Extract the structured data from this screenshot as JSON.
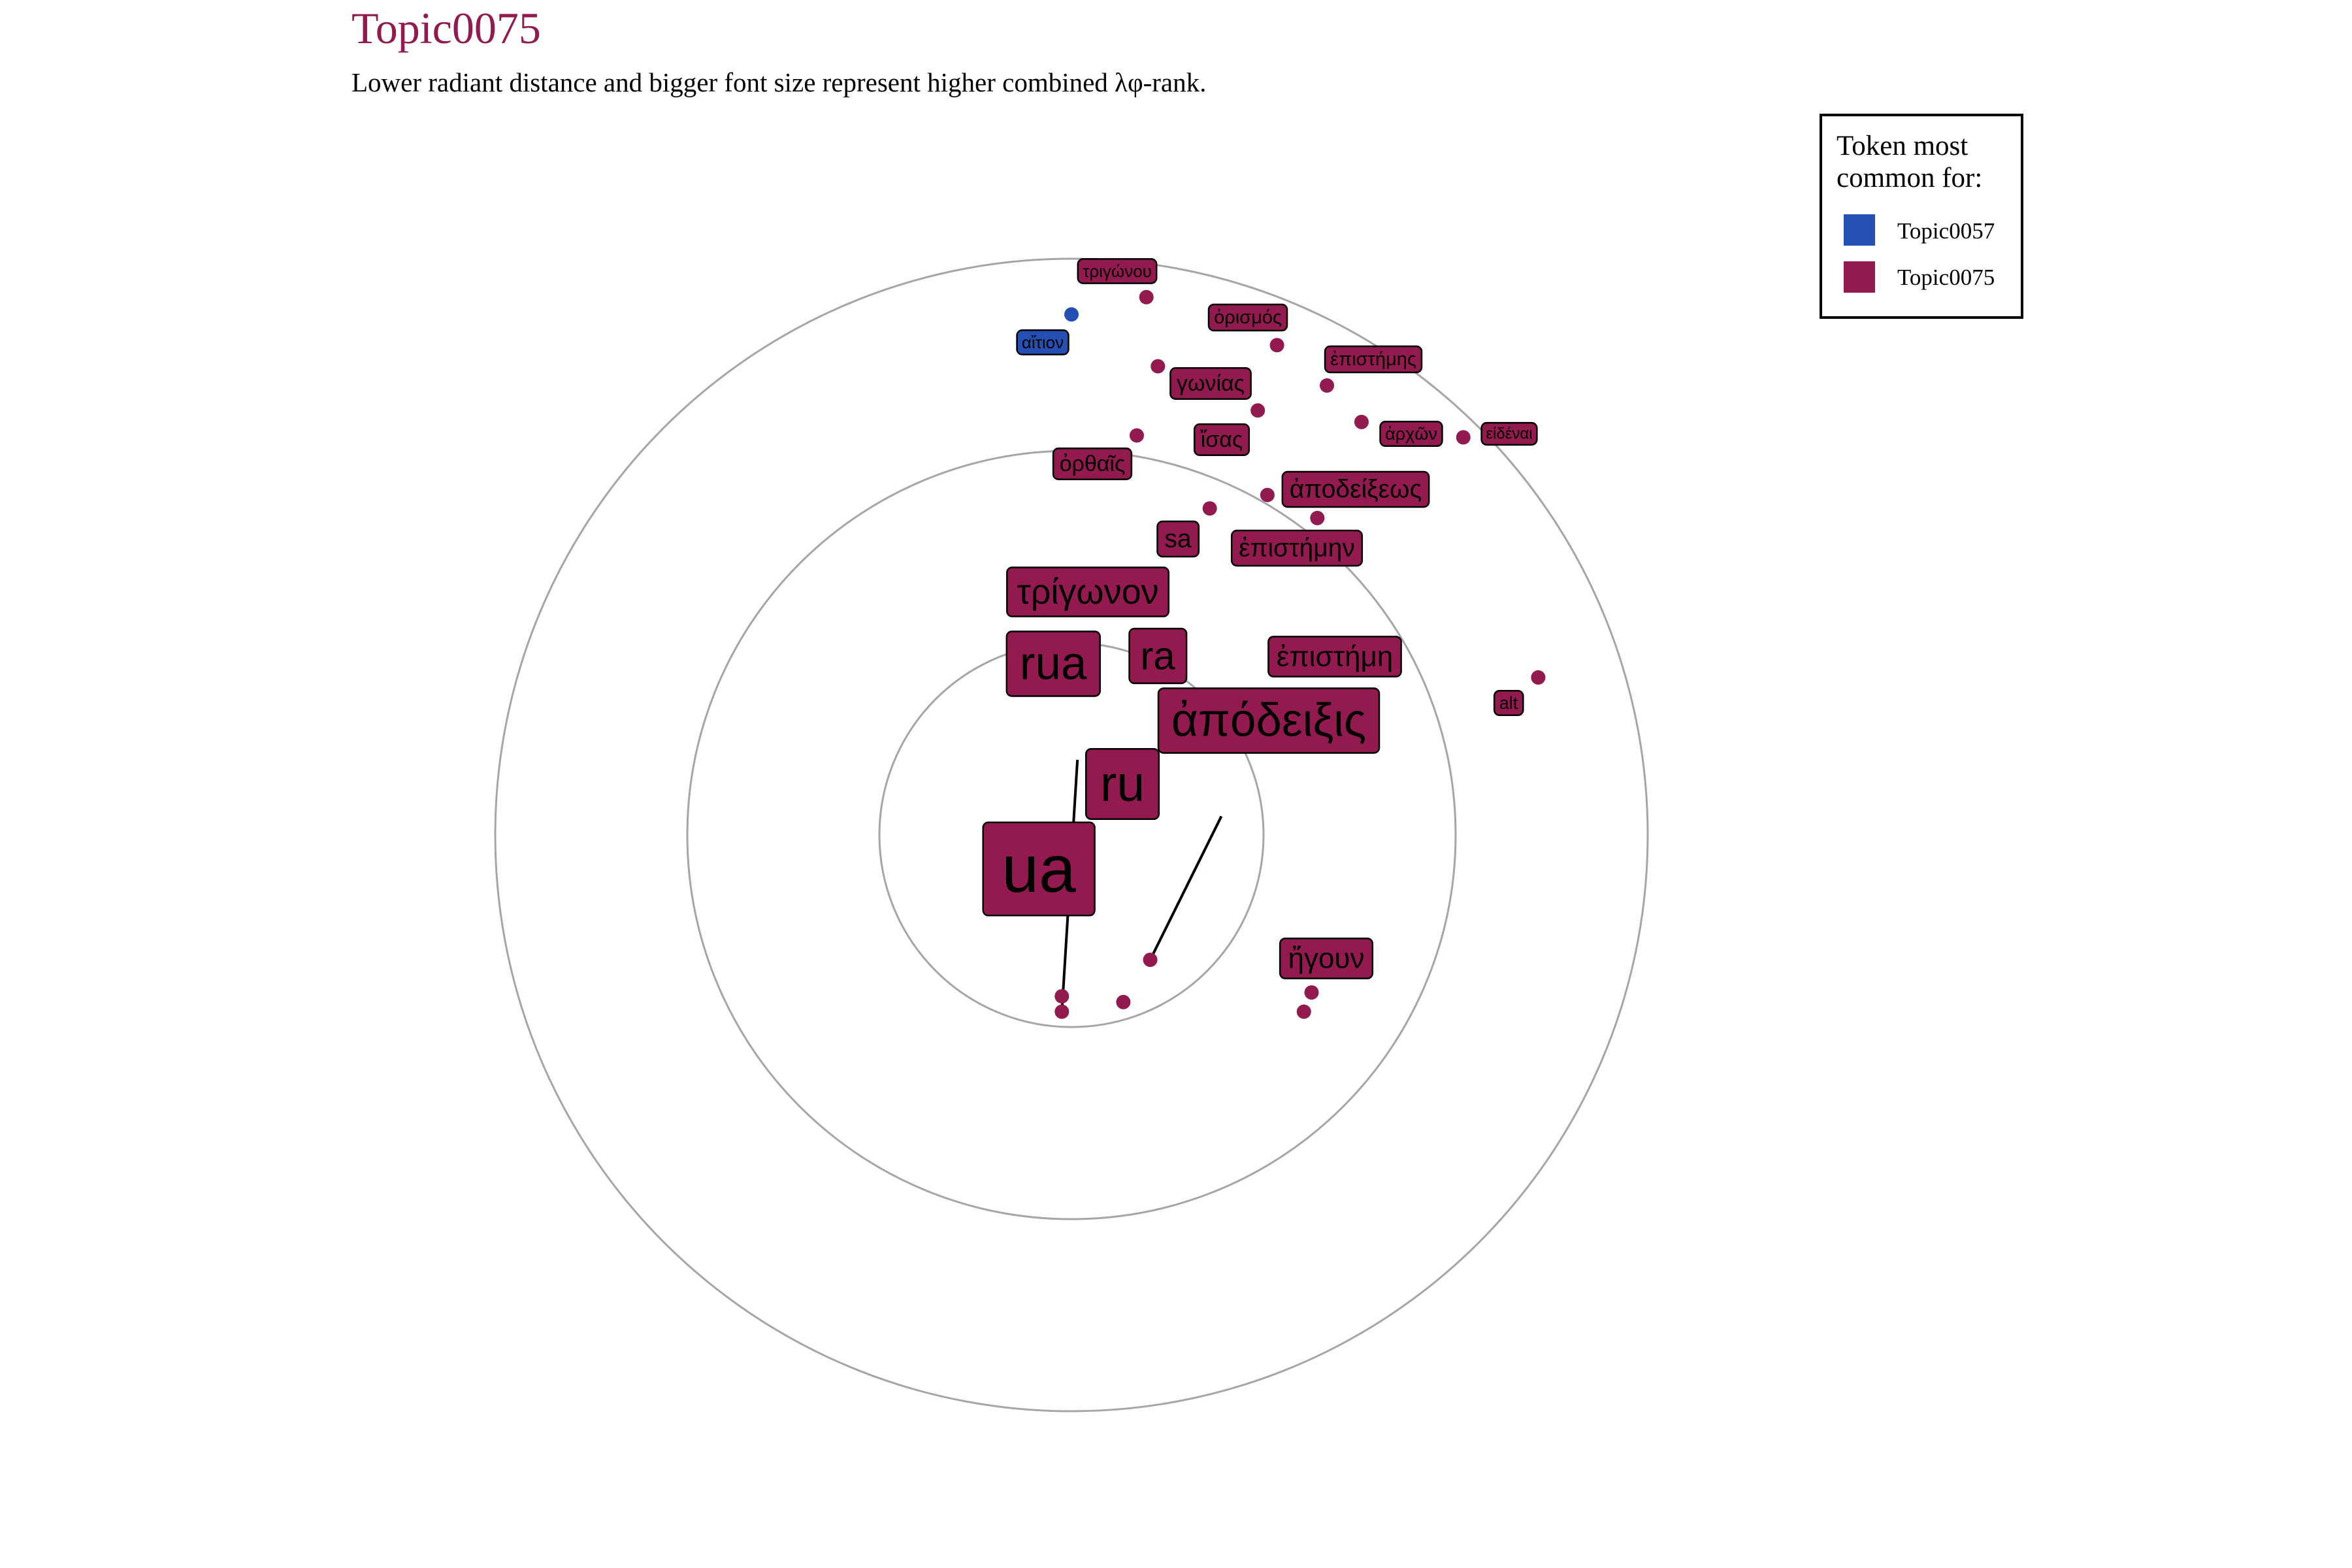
{
  "chart_data": {
    "type": "scatter",
    "title": "Topic0075",
    "subtitle": "Lower radiant distance and bigger font size represent higher combined λφ-rank.",
    "legend": {
      "title_lines": [
        "Token most",
        "common for:"
      ],
      "placement": "top-right",
      "entries": [
        {
          "name": "Topic0057",
          "color": "#2450b4"
        },
        {
          "name": "Topic0075",
          "color": "#931a4e"
        }
      ]
    },
    "rings": [
      1,
      2,
      3
    ],
    "grid": false,
    "points": [
      {
        "label": "ua",
        "topic": "Topic0075",
        "x": 0.05,
        "y": -0.12,
        "size": 6
      },
      {
        "label": "ru",
        "topic": "Topic0075",
        "x": 0.16,
        "y": 0.38,
        "size": 4.5
      },
      {
        "label": "rua",
        "topic": "Topic0075",
        "x": -0.05,
        "y": -0.84,
        "size": 4.2
      },
      {
        "label": "τρίγωνον",
        "topic": "Topic0075",
        "x": -0.05,
        "y": -0.92,
        "size": 3.2
      },
      {
        "label": "ra",
        "topic": "Topic0075",
        "x": 0.27,
        "y": -0.87,
        "size": 3.5
      },
      {
        "label": "ἀπόδειξις",
        "topic": "Topic0075",
        "x": 0.41,
        "y": -0.65,
        "size": 4.2
      },
      {
        "label": "ἐπιστήμη",
        "topic": "Topic0075",
        "x": 1.21,
        "y": -0.92,
        "size": 2.6
      },
      {
        "label": "ἤγουν",
        "topic": "Topic0075",
        "x": 1.25,
        "y": -0.82,
        "size": 2.6
      },
      {
        "label": "alt",
        "topic": "Topic0075",
        "x": 2.43,
        "y": 0.82,
        "size": 1.6
      },
      {
        "label": "sa",
        "topic": "Topic0075",
        "x": 0.72,
        "y": 1.7,
        "size": 2.3
      },
      {
        "label": "ἀποδείξεως",
        "topic": "Topic0075",
        "x": 1.02,
        "y": 1.77,
        "size": 2.3
      },
      {
        "label": "ἐπιστήμην",
        "topic": "Topic0075",
        "x": 1.28,
        "y": 1.65,
        "size": 2.3
      },
      {
        "label": "ὀρθαῖς",
        "topic": "Topic0075",
        "x": 0.34,
        "y": 2.08,
        "size": 2.0
      },
      {
        "label": "ἴσας",
        "topic": "Topic0075",
        "x": 0.97,
        "y": 2.21,
        "size": 2.0
      },
      {
        "label": "γωνίας",
        "topic": "Topic0075",
        "x": 0.45,
        "y": 2.44,
        "size": 2.0
      },
      {
        "label": "ἀρχῶν",
        "topic": "Topic0075",
        "x": 1.51,
        "y": 2.15,
        "size": 1.6
      },
      {
        "label": "εἰδέναι",
        "topic": "Topic0075",
        "x": 2.04,
        "y": 2.07,
        "size": 1.4
      },
      {
        "label": "ἐπιστήμης",
        "topic": "Topic0075",
        "x": 1.33,
        "y": 2.34,
        "size": 1.7
      },
      {
        "label": "ὁρισμός",
        "topic": "Topic0075",
        "x": 1.07,
        "y": 2.55,
        "size": 1.7
      },
      {
        "label": "τριγώνου",
        "topic": "Topic0075",
        "x": 0.39,
        "y": 2.8,
        "size": 1.5
      },
      {
        "label": "αἴτιον",
        "topic": "Topic0057",
        "x": 0.0,
        "y": 2.71,
        "size": 1.5
      }
    ]
  }
}
